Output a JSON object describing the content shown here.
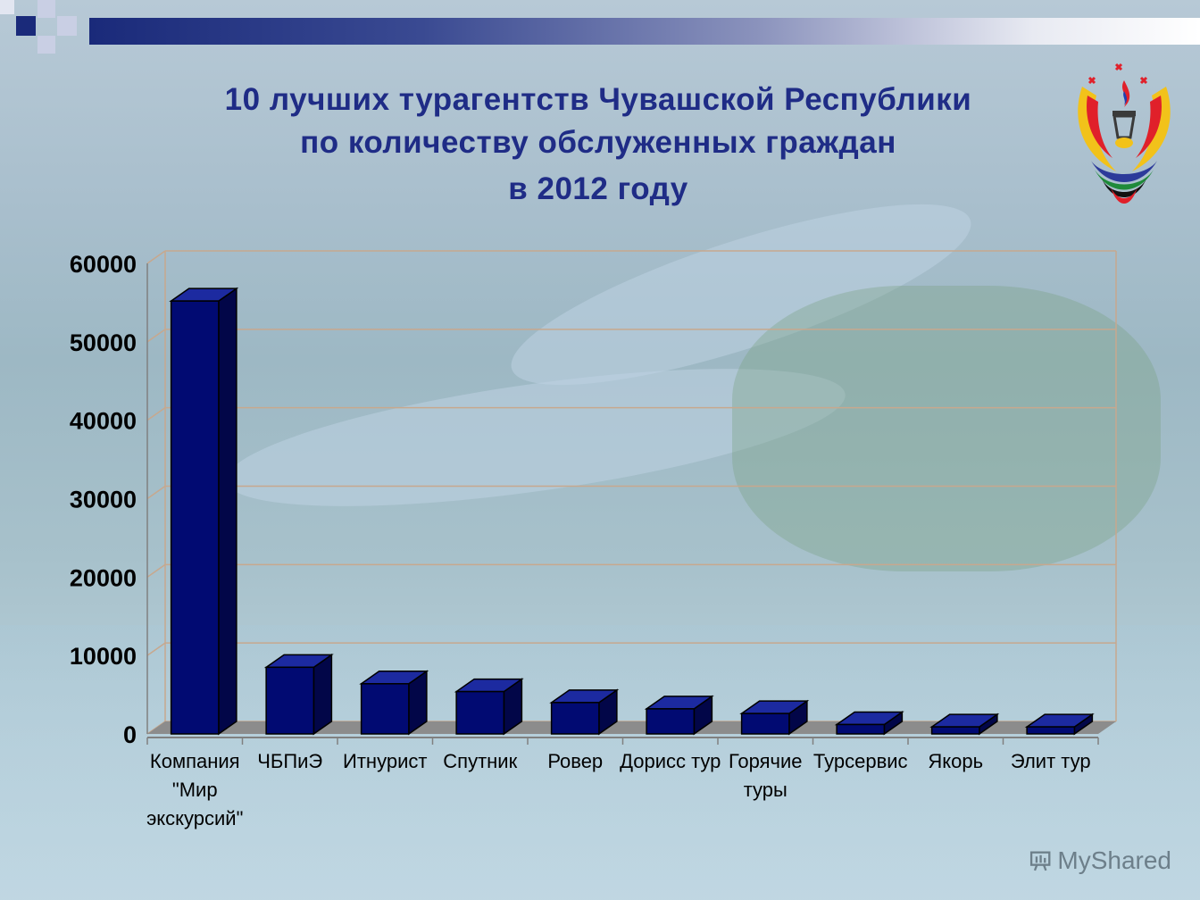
{
  "slide": {
    "title_line1": "10 лучших турагентств Чувашской Республики",
    "title_line2": "по количеству обслуженных граждан",
    "title_line3": "в 2012 году",
    "watermark": "MyShared"
  },
  "colors": {
    "bar_front": "#010a72",
    "bar_top": "#1c2aa0",
    "bar_side": "#020648",
    "gridline": "#c7a88e",
    "title": "#1f2c86"
  },
  "chart_data": {
    "type": "bar",
    "categories": [
      [
        "Компания",
        "\"Мир",
        "экскурсий\""
      ],
      [
        "ЧБПиЭ"
      ],
      [
        "Итнурист"
      ],
      [
        "Спутник"
      ],
      [
        "Ровер"
      ],
      [
        "Дорисс тур"
      ],
      [
        "Горячие",
        "туры"
      ],
      [
        "Турсервис"
      ],
      [
        "Якорь"
      ],
      [
        "Элит тур"
      ]
    ],
    "values": [
      55200,
      8500,
      6400,
      5400,
      4000,
      3200,
      2600,
      1200,
      900,
      900
    ],
    "ylim": [
      0,
      60000
    ],
    "yticks": [
      "0",
      "10000",
      "20000",
      "30000",
      "40000",
      "50000",
      "60000"
    ],
    "grid": true,
    "style": "3d"
  }
}
